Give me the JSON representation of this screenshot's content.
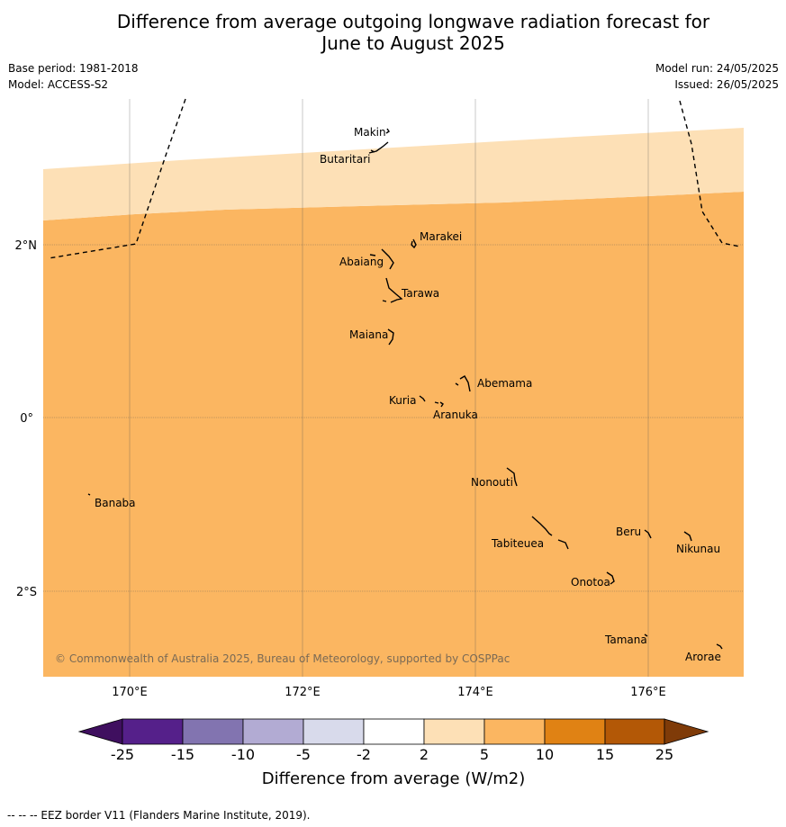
{
  "title_line1": "Difference from average outgoing longwave radiation forecast for",
  "title_line2": "June to August 2025",
  "base_period": "Base period: 1981-2018",
  "model": "Model: ACCESS-S2",
  "model_run": "Model run: 24/05/2025",
  "issued": "Issued: 26/05/2025",
  "map": {
    "lat_labels": [
      "2°N",
      "0°",
      "2°S"
    ],
    "lon_labels": [
      "170°E",
      "172°E",
      "174°E",
      "176°E"
    ],
    "places": [
      "Makin",
      "Butaritari",
      "Marakei",
      "Abaiang",
      "Tarawa",
      "Maiana",
      "Abemama",
      "Kuria",
      "Aranuka",
      "Nonouti",
      "Banaba",
      "Beru",
      "Nikunau",
      "Tabiteuea",
      "Onotoa",
      "Tamana",
      "Arorae"
    ],
    "copyright": "© Commonwealth of Australia 2025, Bureau of Meteorology, supported by COSPPac",
    "zones": [
      {
        "category": "2 to 5",
        "color": "#fde0b6"
      },
      {
        "category": "5 to 10",
        "color": "#fbb661"
      }
    ]
  },
  "legend": {
    "title": "Difference from average (W/m2)",
    "ticks": [
      "-25",
      "-15",
      "-10",
      "-5",
      "-2",
      "2",
      "5",
      "10",
      "15",
      "25"
    ],
    "colors": [
      "#3f0f5f",
      "#55208a",
      "#8274b0",
      "#b2abd3",
      "#d8daeb",
      "#ffffff",
      "#fde0b6",
      "#fbb661",
      "#e08214",
      "#b35806",
      "#7f3b08"
    ]
  },
  "footer": "--  --  -- EEZ border V11 (Flanders Marine Institute, 2019)."
}
